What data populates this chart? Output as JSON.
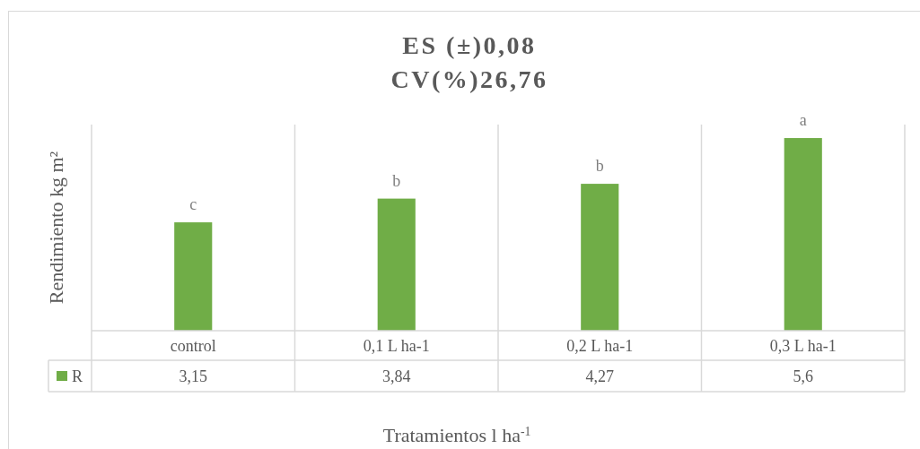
{
  "chart_data": {
    "type": "bar",
    "title": "ES (±)0,08\nCV(%)26,76",
    "ylabel": "Rendimiento kg m²",
    "xlabel": "Tratamientos l ha$^{-1}$",
    "categories": [
      "control",
      "0,1 L ha-1",
      "0,2 L ha-1",
      "0,3 L ha-1"
    ],
    "series": [
      {
        "name": "R",
        "color": "#70ad47",
        "values": [
          3.15,
          3.84,
          4.27,
          5.6
        ],
        "value_labels": [
          "3,15",
          "3,84",
          "4,27",
          "5,6"
        ]
      }
    ],
    "annotations": [
      {
        "text": "c",
        "x": "control",
        "y": 3.15
      },
      {
        "text": "b",
        "x": "0,1 L ha-1",
        "y": 3.84
      },
      {
        "text": "b",
        "x": "0,2 L ha-1",
        "y": 4.27
      },
      {
        "text": "a",
        "x": "0,3 L ha-1",
        "y": 5.6
      }
    ],
    "grid": "x",
    "legend": "bottom"
  }
}
